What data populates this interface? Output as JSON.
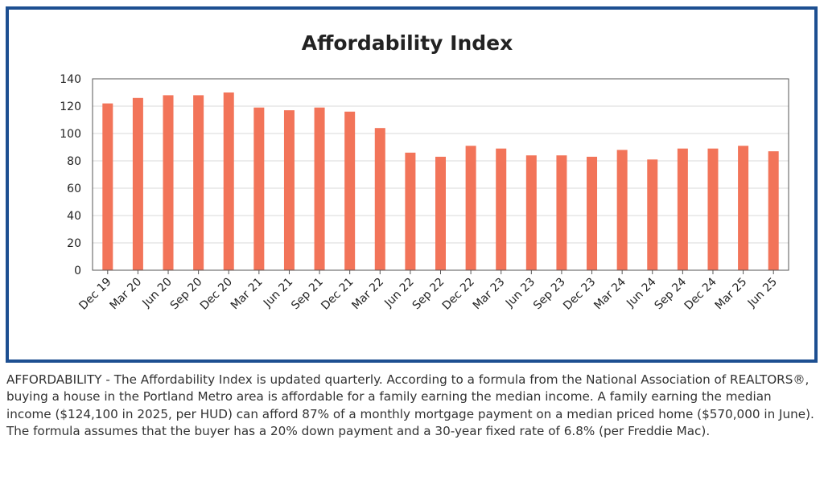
{
  "chart_data": {
    "type": "bar",
    "title": "Affordability Index",
    "xlabel": "",
    "ylabel": "",
    "ylim": [
      0,
      140
    ],
    "yticks": [
      0,
      20,
      40,
      60,
      80,
      100,
      120,
      140
    ],
    "grid": true,
    "legend": "none",
    "categories": [
      "Dec 19",
      "Mar 20",
      "Jun 20",
      "Sep 20",
      "Dec 20",
      "Mar 21",
      "Jun 21",
      "Sep 21",
      "Dec 21",
      "Mar 22",
      "Jun 22",
      "Sep 22",
      "Dec 22",
      "Mar 23",
      "Jun 23",
      "Sep 23",
      "Dec 23",
      "Mar 24",
      "Jun 24",
      "Sep 24",
      "Dec 24",
      "Mar 25",
      "Jun 25"
    ],
    "values": [
      122,
      126,
      128,
      128,
      130,
      119,
      117,
      119,
      116,
      104,
      86,
      83,
      91,
      89,
      84,
      84,
      83,
      88,
      81,
      89,
      89,
      91,
      87
    ],
    "colors": {
      "bar": "#f27459",
      "grid": "#d9d9d9",
      "axis": "#555555",
      "frame": "#1d4f91"
    }
  },
  "caption": "AFFORDABILITY - The Affordability Index is updated quarterly. According to a formula from the National Association of REALTORS®, buying a house in the Portland Metro area is affordable for a family earning the median income. A family earning the median income ($124,100 in 2025, per HUD) can afford 87% of a monthly mortgage payment on a median priced home ($570,000 in June). The formula assumes that the buyer has a 20% down payment and a 30-year fixed rate of 6.8% (per Freddie Mac)."
}
